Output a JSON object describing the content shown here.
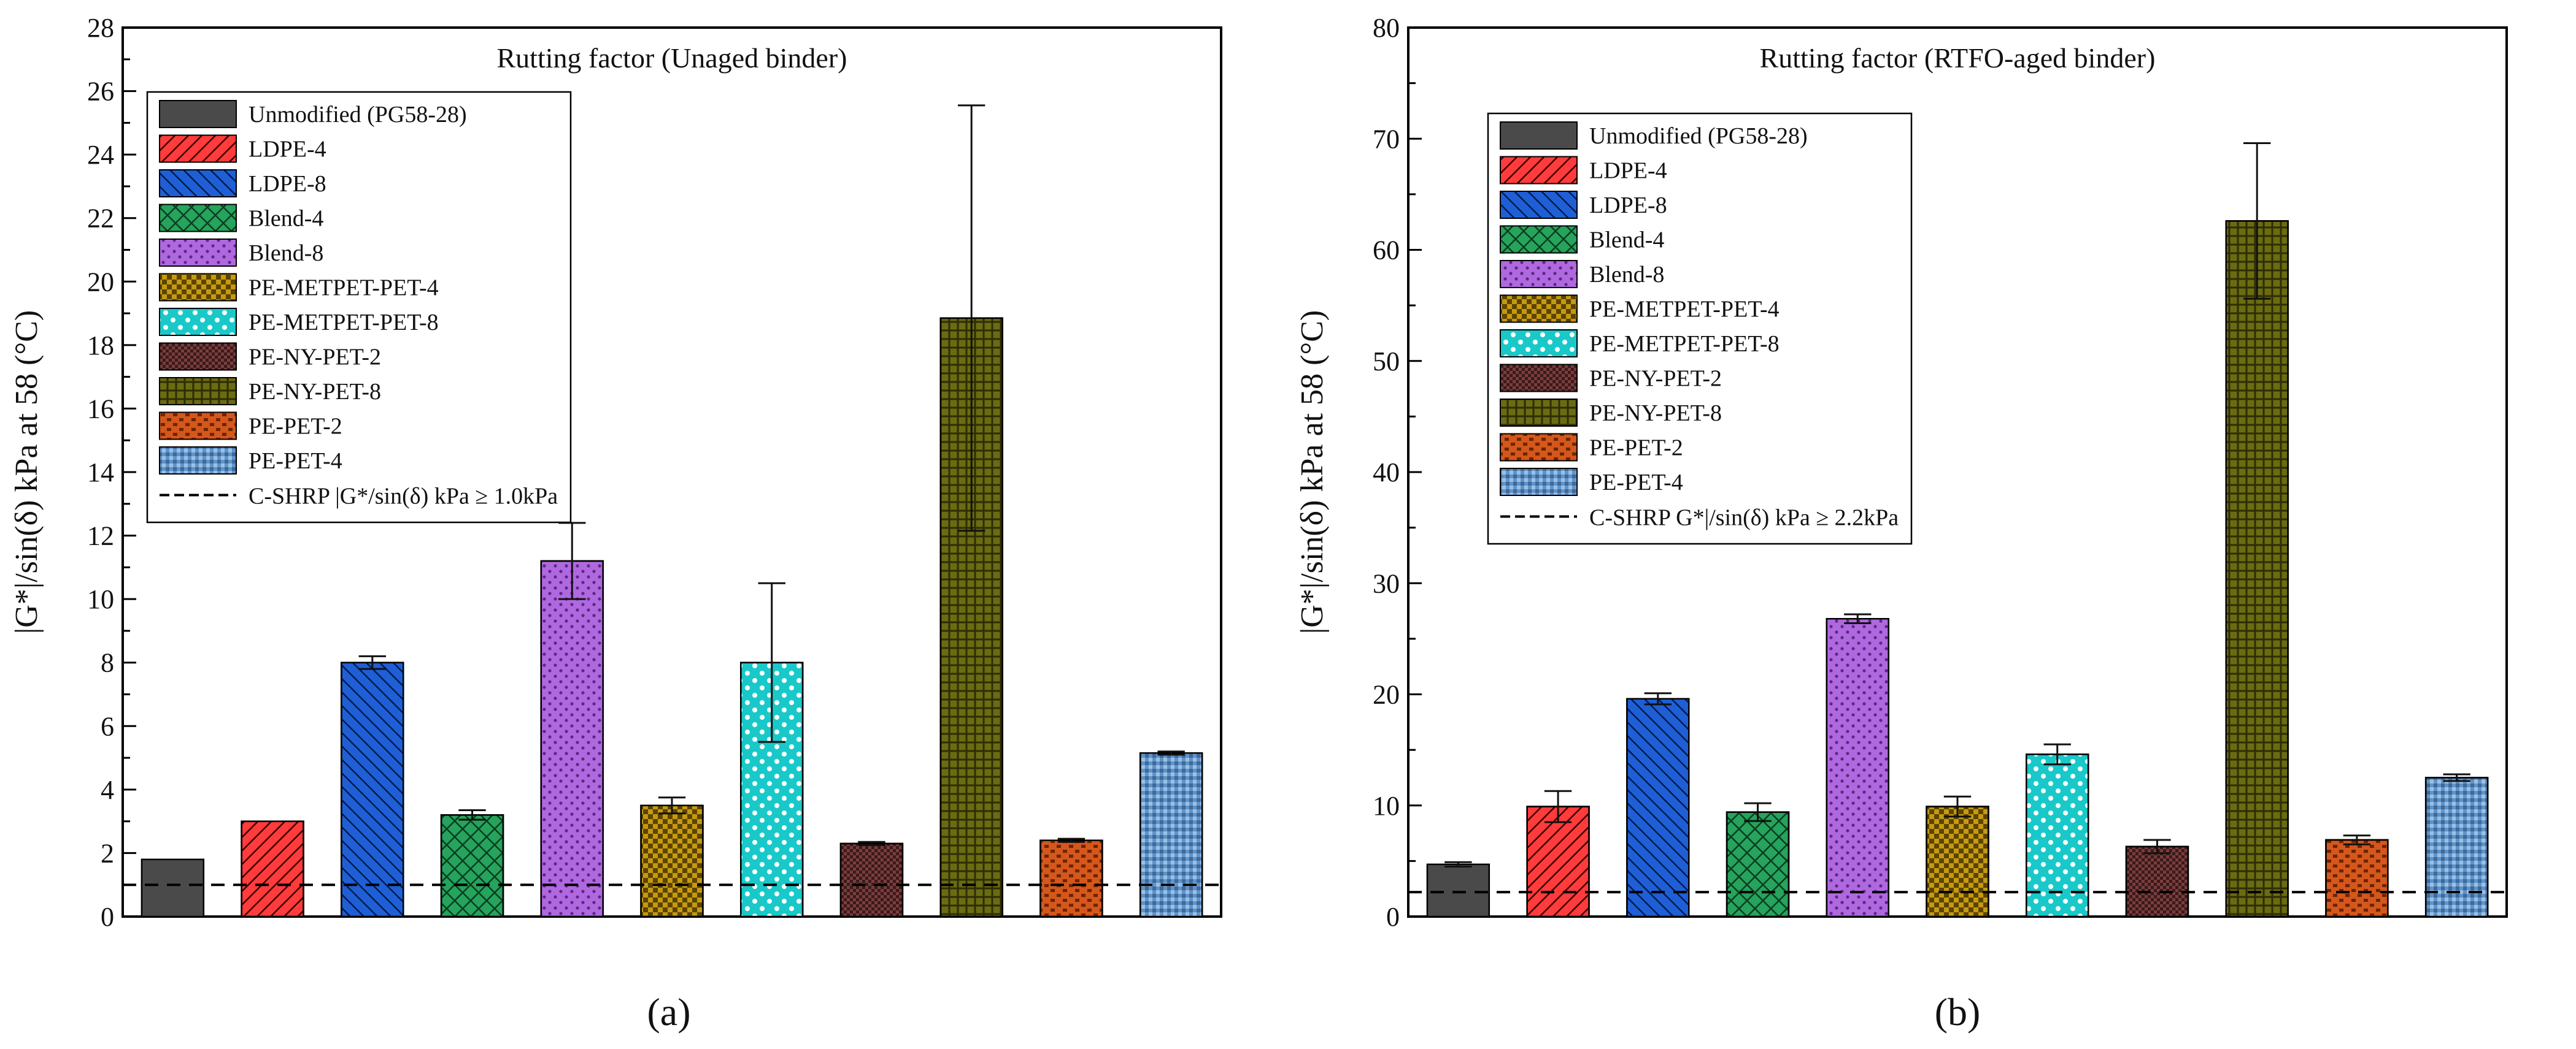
{
  "colors": {
    "Unmodified (PG58-28)": "#4a4a4a",
    "LDPE-4": "#ff3b3b",
    "LDPE-8": "#1f5fd6",
    "Blend-4": "#26a35c",
    "Blend-8": "#b068e0",
    "PE-METPET-PET-4": "#c49a10",
    "PE-METPET-PET-8": "#19c9c9",
    "PE-NY-PET-2": "#7a3d3d",
    "PE-NY-PET-8": "#6b6b12",
    "PE-PET-2": "#d4571c",
    "PE-PET-4": "#5f93c9"
  },
  "chart_data": [
    {
      "type": "bar",
      "panel_label": "(a)",
      "title": "Rutting factor (Unaged binder)",
      "xlabel": "",
      "ylabel": "|G*|/sin(δ) kPa at 58 (°C)",
      "ylim": [
        0,
        28
      ],
      "yticks": [
        "0",
        "2",
        "4",
        "6",
        "8",
        "10",
        "12",
        "14",
        "16",
        "18",
        "20",
        "22",
        "24",
        "26",
        "28"
      ],
      "categories": [
        "Unmodified (PG58-28)",
        "LDPE-4",
        "LDPE-8",
        "Blend-4",
        "Blend-8",
        "PE-METPET-PET-4",
        "PE-METPET-PET-8",
        "PE-NY-PET-2",
        "PE-NY-PET-8",
        "PE-PET-2",
        "PE-PET-4"
      ],
      "values": [
        1.8,
        3.0,
        8.0,
        3.2,
        11.2,
        3.5,
        8.0,
        2.3,
        18.85,
        2.4,
        5.15
      ],
      "errors": [
        0.0,
        0.0,
        0.2,
        0.15,
        1.2,
        0.25,
        2.5,
        0.05,
        6.7,
        0.05,
        0.05
      ],
      "reference_line": {
        "value": 1.0,
        "label": "C-SHRP |G*/sin(δ) kPa ≥ 1.0kPa",
        "style": "dashed"
      },
      "legend_position": "top-left"
    },
    {
      "type": "bar",
      "panel_label": "(b)",
      "title": "Rutting factor (RTFO-aged binder)",
      "xlabel": "",
      "ylabel": "|G*|/sin(δ) kPa at 58 (°C)",
      "ylim": [
        0,
        80
      ],
      "yticks": [
        "0",
        "10",
        "20",
        "30",
        "40",
        "50",
        "60",
        "70",
        "80"
      ],
      "categories": [
        "Unmodified (PG58-28)",
        "LDPE-4",
        "LDPE-8",
        "Blend-4",
        "Blend-8",
        "PE-METPET-PET-4",
        "PE-METPET-PET-8",
        "PE-NY-PET-2",
        "PE-NY-PET-8",
        "PE-PET-2",
        "PE-PET-4"
      ],
      "values": [
        4.7,
        9.9,
        19.6,
        9.4,
        26.8,
        9.9,
        14.6,
        6.3,
        62.6,
        6.9,
        12.5
      ],
      "errors": [
        0.2,
        1.4,
        0.5,
        0.8,
        0.4,
        0.9,
        0.9,
        0.6,
        7.0,
        0.4,
        0.3
      ],
      "reference_line": {
        "value": 2.2,
        "label": "C-SHRP  G*|/sin(δ) kPa ≥ 2.2kPa",
        "style": "dashed"
      },
      "legend_position": "top-left"
    }
  ]
}
